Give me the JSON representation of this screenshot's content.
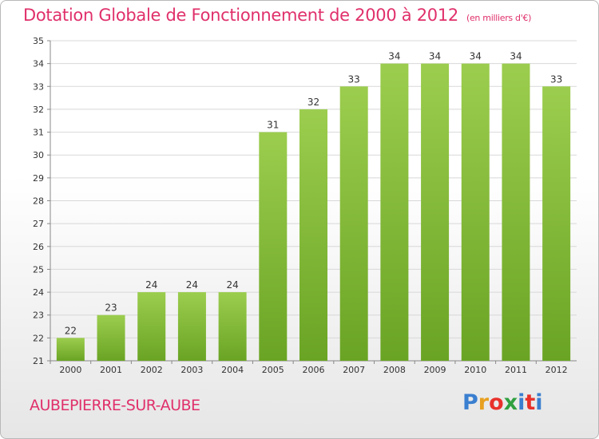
{
  "header": {
    "title": "Dotation Globale de Fonctionnement de 2000 à 2012",
    "unit": "(en milliers d'€)"
  },
  "footer": {
    "commune": "AUBEPIERRE-SUR-AUBE",
    "logo_text": "Proxiti",
    "logo_colors": [
      "#3a7fd0",
      "#e8a020",
      "#e8302a",
      "#30a040",
      "#3a7fd0",
      "#e8302a",
      "#3a7fd0"
    ]
  },
  "colors": {
    "bar_top": "#9ccd4e",
    "bar_bottom": "#6aa424",
    "grid": "#d8d8d8",
    "accent": "#e0306a"
  },
  "chart_data": {
    "type": "bar",
    "categories": [
      "2000",
      "2001",
      "2002",
      "2003",
      "2004",
      "2005",
      "2006",
      "2007",
      "2008",
      "2009",
      "2010",
      "2011",
      "2012"
    ],
    "values": [
      22,
      23,
      24,
      24,
      24,
      31,
      32,
      33,
      34,
      34,
      34,
      34,
      33
    ],
    "title": "Dotation Globale de Fonctionnement de 2000 à 2012",
    "ylim": [
      21,
      35
    ],
    "yticks": [
      21,
      22,
      23,
      24,
      25,
      26,
      27,
      28,
      29,
      30,
      31,
      32,
      33,
      34,
      35
    ],
    "grid": true,
    "legend": "none"
  }
}
